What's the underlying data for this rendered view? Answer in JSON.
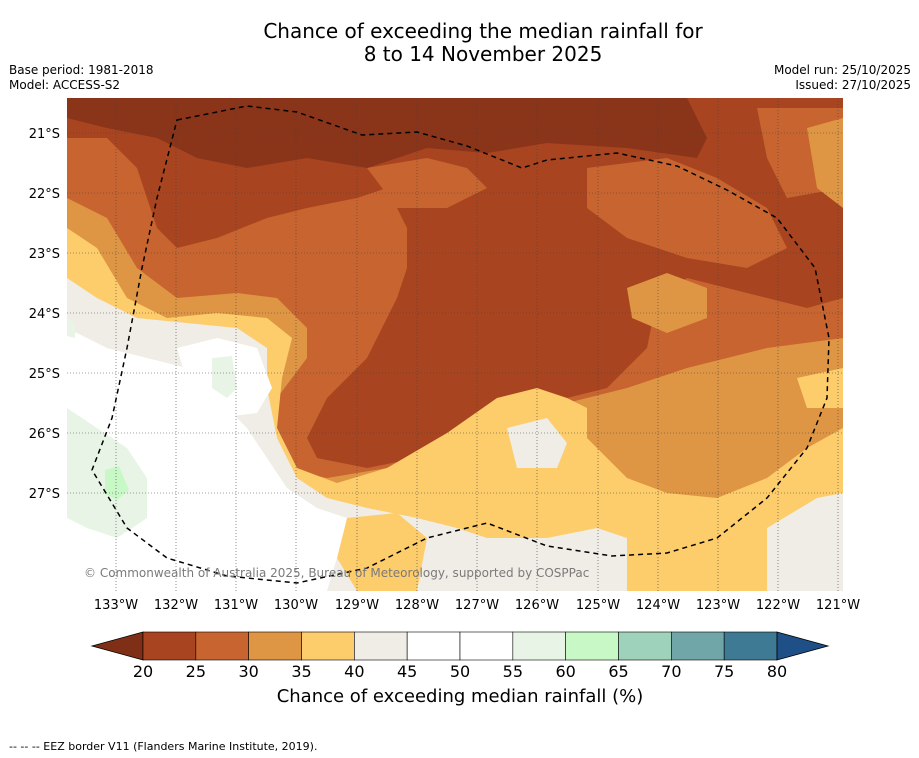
{
  "title": {
    "line1": "Chance of exceeding the median rainfall for",
    "line2": "8 to 14 November 2025"
  },
  "meta": {
    "base_period": "Base period: 1981-2018",
    "model": "Model: ACCESS-S2",
    "model_run": "Model run: 25/10/2025",
    "issued": "Issued: 27/10/2025"
  },
  "map": {
    "latitude_labels": [
      "21°S",
      "22°S",
      "23°S",
      "24°S",
      "25°S",
      "26°S",
      "27°S"
    ],
    "longitude_labels": [
      "133°W",
      "132°W",
      "131°W",
      "130°W",
      "129°W",
      "128°W",
      "127°W",
      "126°W",
      "125°W",
      "124°W",
      "123°W",
      "122°W",
      "121°W"
    ],
    "copyright": "© Commonwealth of Australia 2025, Bureau of Meteorology, supported by COSPPac",
    "colors": {
      "lt20": "#7f2f16",
      "c20_25": "#a8441f",
      "c25_30": "#c8642f",
      "c30_35": "#df9644",
      "c35_40": "#fdcc6b",
      "c40_45": "#f0ece6",
      "c45_55": "#ffffff",
      "c55_60": "#e8f5e6",
      "c60_65": "#c8f8c6"
    }
  },
  "colorbar": {
    "ticks": [
      "20",
      "25",
      "30",
      "35",
      "40",
      "45",
      "50",
      "55",
      "60",
      "65",
      "70",
      "75",
      "80"
    ],
    "label": "Chance of exceeding median rainfall (%)",
    "colors": [
      "#a8441f",
      "#c8642f",
      "#df9644",
      "#fdcc6b",
      "#f0ece6",
      "#ffffff",
      "#ffffff",
      "#e8f5e6",
      "#c8f8c6",
      "#9ed2bb",
      "#70a6a7",
      "#3f7a95"
    ],
    "under_color": "#7f2f16",
    "over_color": "#1f4f87"
  },
  "footnote": "--  --  -- EEZ border V11 (Flanders Marine Institute, 2019)."
}
